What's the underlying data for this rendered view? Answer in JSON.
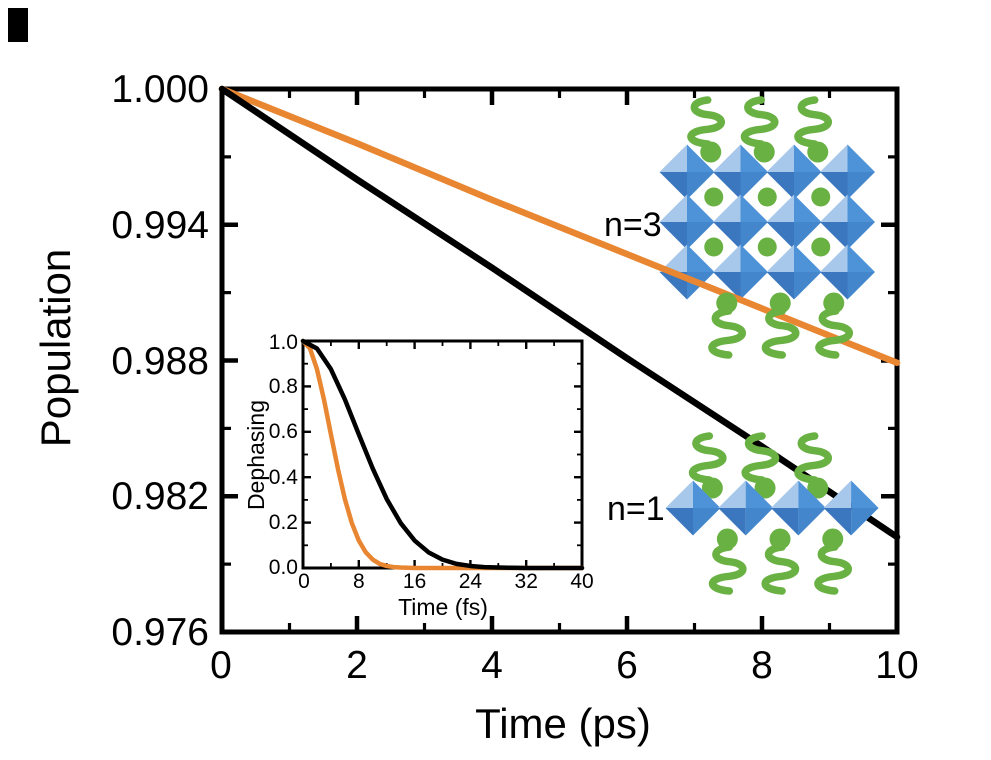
{
  "figure": {
    "background": "#ffffff",
    "frame_color": "#000000",
    "has_corner_mark": true
  },
  "chart_data": [
    {
      "id": "main",
      "type": "line",
      "title": "",
      "xlabel": "Time (ps)",
      "ylabel": "Population",
      "xlim": [
        0,
        10
      ],
      "ylim": [
        0.976,
        1.0
      ],
      "grid": false,
      "legend_position": "none",
      "xticks": [
        0,
        2,
        4,
        6,
        8,
        10
      ],
      "xtick_labels": [
        "0",
        "2",
        "4",
        "6",
        "8",
        "10"
      ],
      "yticks": [
        1.0,
        0.994,
        0.988,
        0.982,
        0.976
      ],
      "ytick_labels": [
        "1.000",
        "0.994",
        "0.988",
        "0.982",
        "0.976"
      ],
      "annotations": [
        {
          "text": "n=3",
          "color": "#2FA8E1"
        },
        {
          "text": "n=1",
          "color": "#000000"
        }
      ],
      "series": [
        {
          "name": "n=1 population decay",
          "color": "#000000",
          "x": [
            0,
            2,
            4,
            6,
            8,
            10
          ],
          "y": [
            1.0,
            0.996,
            0.9921,
            0.9881,
            0.9842,
            0.9802
          ]
        },
        {
          "name": "n=3 population decay",
          "color": "#E88631",
          "x": [
            0,
            2,
            4,
            6,
            8,
            10
          ],
          "y": [
            1.0,
            0.9976,
            0.9951,
            0.9927,
            0.9903,
            0.9879
          ]
        }
      ]
    },
    {
      "id": "inset",
      "type": "line",
      "title": "",
      "xlabel": "Time (fs)",
      "ylabel": "Dephasing",
      "xlim": [
        0,
        40
      ],
      "ylim": [
        0.0,
        1.0
      ],
      "grid": false,
      "legend_position": "none",
      "xticks": [
        0,
        8,
        16,
        24,
        32,
        40
      ],
      "xtick_labels": [
        "0",
        "8",
        "16",
        "24",
        "32",
        "40"
      ],
      "yticks": [
        1.0,
        0.8,
        0.6,
        0.4,
        0.2,
        0.0
      ],
      "ytick_labels": [
        "1.0",
        "0.8",
        "0.6",
        "0.4",
        "0.2",
        "0.0"
      ],
      "series": [
        {
          "name": "n=1 dephasing",
          "color": "#000000",
          "x": [
            0,
            2,
            4,
            6,
            8,
            10,
            12,
            14,
            16,
            18,
            20,
            22,
            24,
            26,
            28,
            30,
            32,
            36,
            40
          ],
          "y": [
            1.0,
            0.967,
            0.876,
            0.743,
            0.589,
            0.438,
            0.304,
            0.198,
            0.121,
            0.069,
            0.037,
            0.018,
            0.009,
            0.004,
            0.002,
            0.001,
            0.0,
            0.0,
            0.0
          ]
        },
        {
          "name": "n=3 dephasing",
          "color": "#E88631",
          "x": [
            0,
            1,
            2,
            3,
            4,
            5,
            6,
            7,
            8,
            9,
            10,
            11,
            12,
            13,
            14,
            16,
            20,
            40
          ],
          "y": [
            1.0,
            0.967,
            0.876,
            0.743,
            0.589,
            0.438,
            0.304,
            0.198,
            0.121,
            0.069,
            0.037,
            0.018,
            0.009,
            0.004,
            0.002,
            0.0,
            0.0,
            0.0
          ]
        }
      ]
    }
  ],
  "illustrations": {
    "n3_structure": {
      "description": "layered perovskite, three octahedra layers",
      "octahedra_rows": 3,
      "octahedra_cols": 4,
      "cation_rows": 2,
      "cations_per_row": 3,
      "top_ligands": 3,
      "bottom_ligands": 3
    },
    "n1_structure": {
      "description": "layered perovskite, single octahedra layer",
      "octahedra_rows": 1,
      "octahedra_cols": 4,
      "cation_rows": 0,
      "cations_per_row": 0,
      "top_ligands": 3,
      "bottom_ligands": 3
    },
    "colors": {
      "octahedron_light": "#A7C8EA",
      "octahedron_top_right": "#4E92D8",
      "octahedron_bottom_right": "#4486CC",
      "octahedron_bottom_left": "#3A77BE",
      "ligand_green": "#69B143"
    }
  }
}
